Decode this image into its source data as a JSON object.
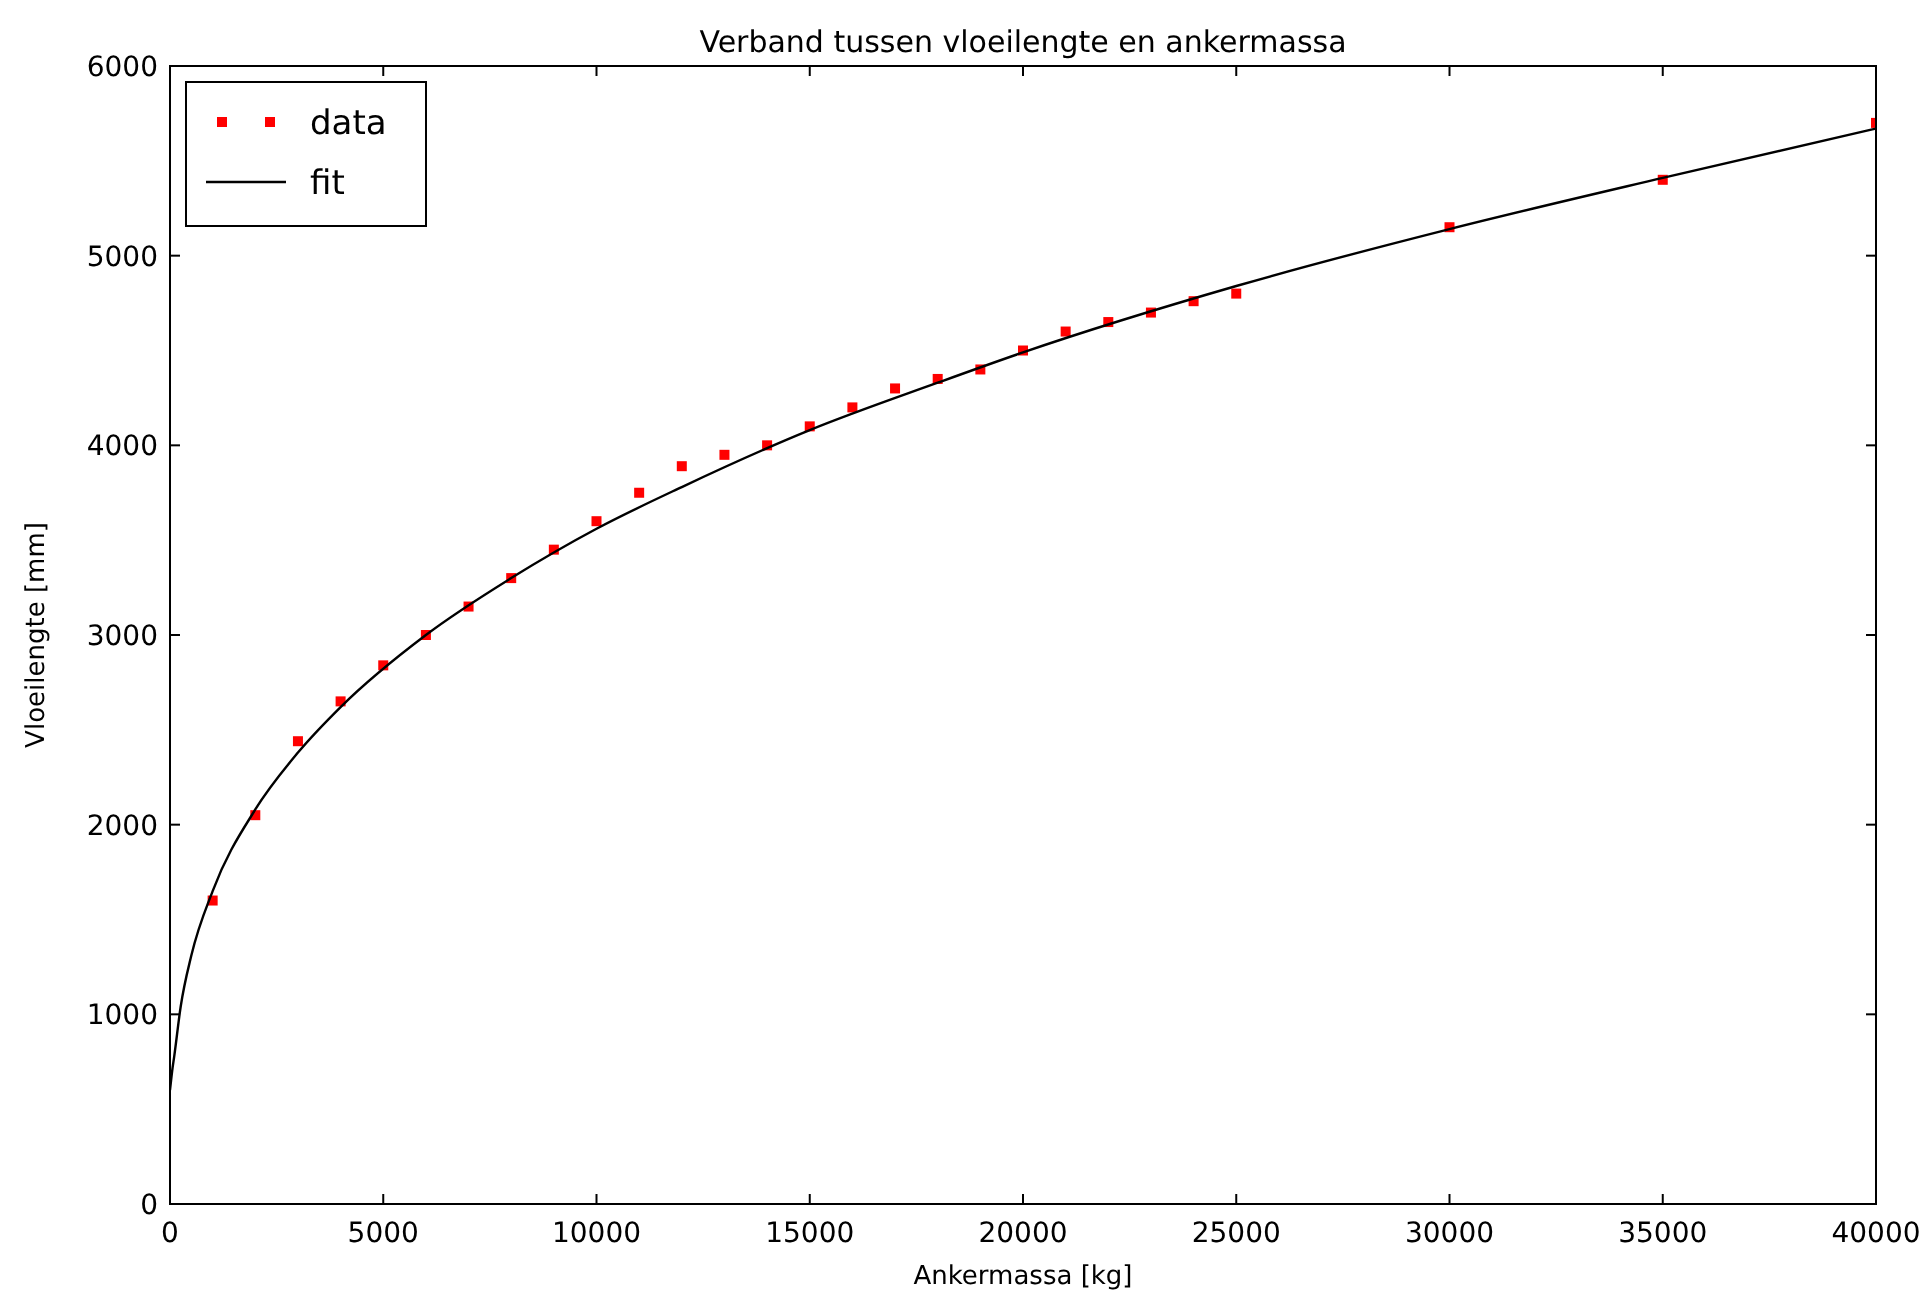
{
  "chart_data": {
    "type": "scatter",
    "title": "Verband tussen vloeilengte en ankermassa",
    "xlabel": "Ankermassa [kg]",
    "ylabel": "Vloeilengte [mm]",
    "xlim": [
      0,
      40000
    ],
    "xticks": [
      0,
      5000,
      10000,
      15000,
      20000,
      25000,
      30000,
      35000,
      40000
    ],
    "ylim": [
      0,
      6000
    ],
    "yticks": [
      0,
      1000,
      2000,
      3000,
      4000,
      5000,
      6000
    ],
    "grid": false,
    "legend": "top left",
    "series": [
      {
        "name": "data",
        "marker": "square",
        "color": "#ff0000",
        "x": [
          1000,
          2000,
          3000,
          4000,
          5000,
          6000,
          7000,
          8000,
          9000,
          10000,
          11000,
          12000,
          13000,
          14000,
          15000,
          16000,
          17000,
          18000,
          19000,
          20000,
          21000,
          22000,
          23000,
          24000,
          25000,
          30000,
          35000,
          40000
        ],
        "values": [
          1600,
          2050,
          2440,
          2650,
          2840,
          3000,
          3150,
          3300,
          3450,
          3600,
          3750,
          3890,
          3950,
          4000,
          4100,
          4200,
          4300,
          4350,
          4400,
          4500,
          4600,
          4650,
          4700,
          4760,
          4800,
          5150,
          5400,
          5700
        ]
      },
      {
        "name": "fit",
        "type": "line",
        "marker": "none",
        "line_style": "solid",
        "color": "#000000",
        "x": [
          0,
          50,
          100,
          250,
          500,
          1000,
          2000,
          3000,
          4000,
          6000,
          8000,
          10000,
          12000,
          15000,
          18000,
          20000,
          25000,
          30000,
          35000,
          40000
        ],
        "values": [
          600,
          700,
          780,
          1040,
          1310,
          1650,
          2080,
          2380,
          2620,
          3000,
          3300,
          3560,
          3780,
          4080,
          4330,
          4490,
          4840,
          5140,
          5410,
          5670
        ]
      }
    ]
  }
}
